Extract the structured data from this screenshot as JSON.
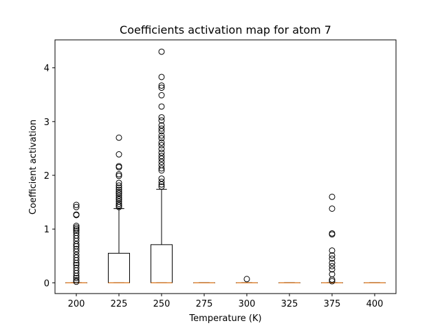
{
  "chart_data": {
    "type": "box",
    "title": "Coefficients activation map for atom 7",
    "xlabel": "Temperature (K)",
    "ylabel": "Coefficient activation",
    "ylim": [
      -0.2,
      4.52
    ],
    "yticks": [
      0,
      1,
      2,
      3,
      4
    ],
    "categories": [
      "200",
      "225",
      "250",
      "275",
      "300",
      "325",
      "375",
      "400"
    ],
    "grid": false,
    "colors": {
      "box": "#000000",
      "median": "#ff7f0e",
      "flier": "#000000"
    },
    "boxes": [
      {
        "category": "200",
        "q1": 0,
        "median": 0,
        "q3": 0,
        "whisker_low": 0,
        "whisker_high": 0,
        "outliers": [
          1.45,
          1.41,
          1.27,
          1.26,
          1.06,
          1.03,
          1.0,
          0.97,
          0.93,
          0.88,
          0.83,
          0.78,
          0.72,
          0.68,
          0.63,
          0.58,
          0.52,
          0.47,
          0.42,
          0.37,
          0.33,
          0.28,
          0.23,
          0.18,
          0.13,
          0.09,
          0.05,
          0.02
        ]
      },
      {
        "category": "225",
        "q1": 0,
        "median": 0,
        "q3": 0.55,
        "whisker_low": 0,
        "whisker_high": 1.38,
        "outliers": [
          2.7,
          2.39,
          2.17,
          2.15,
          2.02,
          1.99,
          1.86,
          1.81,
          1.77,
          1.73,
          1.69,
          1.66,
          1.62,
          1.58,
          1.55,
          1.51,
          1.47,
          1.44,
          1.41
        ]
      },
      {
        "category": "250",
        "q1": 0,
        "median": 0,
        "q3": 0.71,
        "whisker_low": 0,
        "whisker_high": 1.74,
        "outliers": [
          4.3,
          3.83,
          3.67,
          3.63,
          3.49,
          3.28,
          3.08,
          3.02,
          2.93,
          2.87,
          2.82,
          2.74,
          2.69,
          2.61,
          2.56,
          2.49,
          2.42,
          2.36,
          2.31,
          2.25,
          2.19,
          2.13,
          2.09,
          1.94,
          1.88,
          1.83,
          1.79
        ]
      },
      {
        "category": "275",
        "q1": 0,
        "median": 0,
        "q3": 0,
        "whisker_low": 0,
        "whisker_high": 0,
        "outliers": []
      },
      {
        "category": "300",
        "q1": 0,
        "median": 0,
        "q3": 0,
        "whisker_low": 0,
        "whisker_high": 0,
        "outliers": [
          0.07
        ]
      },
      {
        "category": "325",
        "q1": 0,
        "median": 0,
        "q3": 0,
        "whisker_low": 0,
        "whisker_high": 0,
        "outliers": []
      },
      {
        "category": "375",
        "q1": 0,
        "median": 0,
        "q3": 0,
        "whisker_low": 0,
        "whisker_high": 0,
        "outliers": [
          1.6,
          1.38,
          0.92,
          0.9,
          0.6,
          0.51,
          0.45,
          0.37,
          0.31,
          0.25,
          0.16,
          0.06,
          0.03
        ]
      },
      {
        "category": "400",
        "q1": 0,
        "median": 0,
        "q3": 0,
        "whisker_low": 0,
        "whisker_high": 0,
        "outliers": []
      }
    ]
  }
}
